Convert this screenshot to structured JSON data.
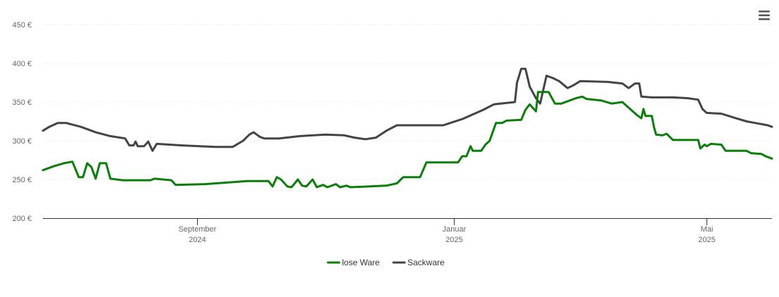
{
  "chart_data": {
    "type": "line",
    "y_unit_suffix": " €",
    "ylim": [
      200,
      450
    ],
    "y_ticks": [
      200,
      250,
      300,
      350,
      400,
      450
    ],
    "y_tick_labels": [
      "200 €",
      "250 €",
      "300 €",
      "350 €",
      "400 €",
      "450 €"
    ],
    "xlim": [
      "2024-06-20",
      "2025-06-01"
    ],
    "x_ticks": [
      {
        "date": "2024-09-01",
        "month": "September",
        "year": "2024"
      },
      {
        "date": "2025-01-01",
        "month": "Januar",
        "year": "2025"
      },
      {
        "date": "2025-05-01",
        "month": "Mai",
        "year": "2025"
      }
    ],
    "grid": true,
    "legend_position": "bottom-center",
    "series": [
      {
        "name": "lose Ware",
        "color": "#0a7d0a",
        "points": [
          [
            "2024-06-20",
            262
          ],
          [
            "2024-06-25",
            267
          ],
          [
            "2024-06-30",
            271
          ],
          [
            "2024-07-04",
            273
          ],
          [
            "2024-07-07",
            253
          ],
          [
            "2024-07-09",
            253
          ],
          [
            "2024-07-11",
            271
          ],
          [
            "2024-07-13",
            266
          ],
          [
            "2024-07-15",
            251
          ],
          [
            "2024-07-17",
            271
          ],
          [
            "2024-07-20",
            271
          ],
          [
            "2024-07-22",
            251
          ],
          [
            "2024-07-28",
            249
          ],
          [
            "2024-08-10",
            249
          ],
          [
            "2024-08-12",
            251
          ],
          [
            "2024-08-20",
            249
          ],
          [
            "2024-08-22",
            243
          ],
          [
            "2024-09-05",
            244
          ],
          [
            "2024-09-25",
            248
          ],
          [
            "2024-10-05",
            248
          ],
          [
            "2024-10-07",
            241
          ],
          [
            "2024-10-09",
            253
          ],
          [
            "2024-10-11",
            250
          ],
          [
            "2024-10-14",
            241
          ],
          [
            "2024-10-16",
            240
          ],
          [
            "2024-10-19",
            250
          ],
          [
            "2024-10-21",
            242
          ],
          [
            "2024-10-23",
            241
          ],
          [
            "2024-10-26",
            250
          ],
          [
            "2024-10-28",
            240
          ],
          [
            "2024-10-31",
            243
          ],
          [
            "2024-11-02",
            240
          ],
          [
            "2024-11-06",
            244
          ],
          [
            "2024-11-08",
            240
          ],
          [
            "2024-11-11",
            242
          ],
          [
            "2024-11-13",
            240
          ],
          [
            "2024-11-30",
            242
          ],
          [
            "2024-12-05",
            245
          ],
          [
            "2024-12-08",
            253
          ],
          [
            "2024-12-16",
            253
          ],
          [
            "2024-12-19",
            272
          ],
          [
            "2025-01-03",
            272
          ],
          [
            "2025-01-05",
            280
          ],
          [
            "2025-01-07",
            280
          ],
          [
            "2025-01-09",
            293
          ],
          [
            "2025-01-10",
            287
          ],
          [
            "2025-01-14",
            287
          ],
          [
            "2025-01-16",
            295
          ],
          [
            "2025-01-18",
            300
          ],
          [
            "2025-01-21",
            323
          ],
          [
            "2025-01-24",
            323
          ],
          [
            "2025-01-26",
            326
          ],
          [
            "2025-02-02",
            327
          ],
          [
            "2025-02-04",
            340
          ],
          [
            "2025-02-06",
            347
          ],
          [
            "2025-02-09",
            338
          ],
          [
            "2025-02-10",
            363
          ],
          [
            "2025-02-15",
            363
          ],
          [
            "2025-02-18",
            348
          ],
          [
            "2025-02-21",
            348
          ],
          [
            "2025-02-28",
            355
          ],
          [
            "2025-03-03",
            357
          ],
          [
            "2025-03-05",
            354
          ],
          [
            "2025-03-12",
            352
          ],
          [
            "2025-03-17",
            348
          ],
          [
            "2025-03-22",
            350
          ],
          [
            "2025-03-29",
            333
          ],
          [
            "2025-03-31",
            329
          ],
          [
            "2025-04-01",
            341
          ],
          [
            "2025-04-02",
            332
          ],
          [
            "2025-04-05",
            332
          ],
          [
            "2025-04-06",
            318
          ],
          [
            "2025-04-07",
            308
          ],
          [
            "2025-04-10",
            307
          ],
          [
            "2025-04-12",
            309
          ],
          [
            "2025-04-15",
            301
          ],
          [
            "2025-04-27",
            301
          ],
          [
            "2025-04-28",
            290
          ],
          [
            "2025-04-30",
            295
          ],
          [
            "2025-05-01",
            293
          ],
          [
            "2025-05-03",
            296
          ],
          [
            "2025-05-08",
            295
          ],
          [
            "2025-05-10",
            287
          ],
          [
            "2025-05-20",
            287
          ],
          [
            "2025-05-22",
            284
          ],
          [
            "2025-05-27",
            283
          ],
          [
            "2025-05-29",
            280
          ],
          [
            "2025-06-01",
            277
          ]
        ]
      },
      {
        "name": "Sackware",
        "color": "#434348",
        "points": [
          [
            "2024-06-20",
            313
          ],
          [
            "2024-06-23",
            318
          ],
          [
            "2024-06-27",
            323
          ],
          [
            "2024-07-01",
            323
          ],
          [
            "2024-07-08",
            318
          ],
          [
            "2024-07-15",
            311
          ],
          [
            "2024-07-22",
            306
          ],
          [
            "2024-07-29",
            303
          ],
          [
            "2024-07-31",
            294
          ],
          [
            "2024-08-02",
            294
          ],
          [
            "2024-08-03",
            299
          ],
          [
            "2024-08-04",
            293
          ],
          [
            "2024-08-07",
            293
          ],
          [
            "2024-08-09",
            299
          ],
          [
            "2024-08-11",
            287
          ],
          [
            "2024-08-13",
            296
          ],
          [
            "2024-08-25",
            294
          ],
          [
            "2024-09-10",
            292
          ],
          [
            "2024-09-18",
            292
          ],
          [
            "2024-09-23",
            300
          ],
          [
            "2024-09-26",
            308
          ],
          [
            "2024-09-28",
            311
          ],
          [
            "2024-10-01",
            305
          ],
          [
            "2024-10-03",
            303
          ],
          [
            "2024-10-10",
            303
          ],
          [
            "2024-10-20",
            306
          ],
          [
            "2024-11-01",
            308
          ],
          [
            "2024-11-10",
            307
          ],
          [
            "2024-11-15",
            304
          ],
          [
            "2024-11-20",
            302
          ],
          [
            "2024-11-25",
            304
          ],
          [
            "2024-11-30",
            313
          ],
          [
            "2024-12-05",
            320
          ],
          [
            "2024-12-15",
            320
          ],
          [
            "2024-12-27",
            320
          ],
          [
            "2025-01-05",
            328
          ],
          [
            "2025-01-15",
            340
          ],
          [
            "2025-01-20",
            347
          ],
          [
            "2025-01-30",
            350
          ],
          [
            "2025-01-31",
            375
          ],
          [
            "2025-02-02",
            393
          ],
          [
            "2025-02-04",
            393
          ],
          [
            "2025-02-06",
            370
          ],
          [
            "2025-02-09",
            355
          ],
          [
            "2025-02-11",
            348
          ],
          [
            "2025-02-14",
            384
          ],
          [
            "2025-02-17",
            381
          ],
          [
            "2025-02-20",
            377
          ],
          [
            "2025-02-24",
            368
          ],
          [
            "2025-02-27",
            372
          ],
          [
            "2025-03-02",
            377
          ],
          [
            "2025-03-15",
            376
          ],
          [
            "2025-03-22",
            374
          ],
          [
            "2025-03-25",
            368
          ],
          [
            "2025-03-28",
            374
          ],
          [
            "2025-03-30",
            374
          ],
          [
            "2025-03-31",
            357
          ],
          [
            "2025-04-05",
            356
          ],
          [
            "2025-04-15",
            356
          ],
          [
            "2025-04-22",
            355
          ],
          [
            "2025-04-27",
            353
          ],
          [
            "2025-04-29",
            341
          ],
          [
            "2025-05-01",
            336
          ],
          [
            "2025-05-08",
            335
          ],
          [
            "2025-05-15",
            329
          ],
          [
            "2025-05-20",
            325
          ],
          [
            "2025-05-26",
            322
          ],
          [
            "2025-05-30",
            320
          ],
          [
            "2025-06-01",
            318
          ]
        ]
      }
    ]
  }
}
